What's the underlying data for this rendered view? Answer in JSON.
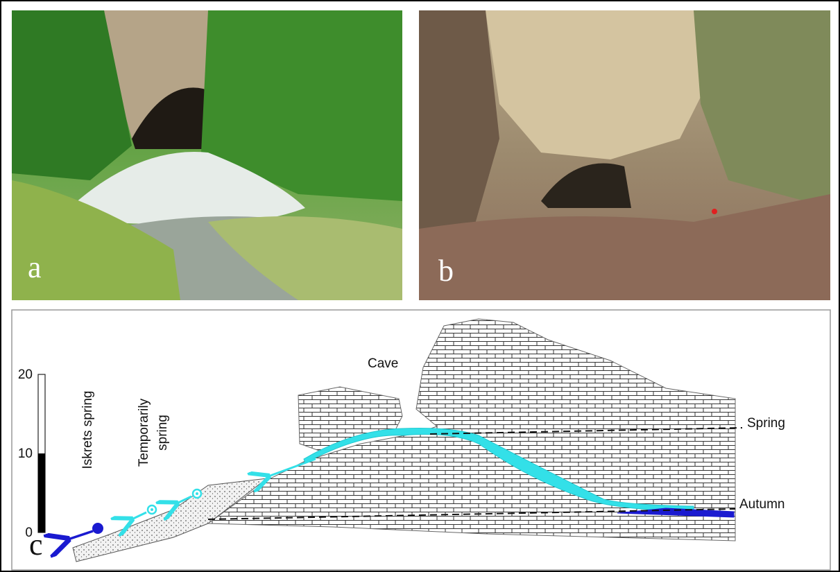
{
  "panels": [
    {
      "label": "a"
    },
    {
      "label": "b"
    },
    {
      "label": "c"
    }
  ],
  "diagram": {
    "cave": "Cave",
    "spring": "Spring",
    "autumn": "Autumn",
    "iskrets_spring": "Iskrets spring",
    "temporarily_spring": [
      "Temporarily",
      "spring"
    ],
    "scale": {
      "ticks": [
        0,
        10,
        20
      ]
    }
  }
}
